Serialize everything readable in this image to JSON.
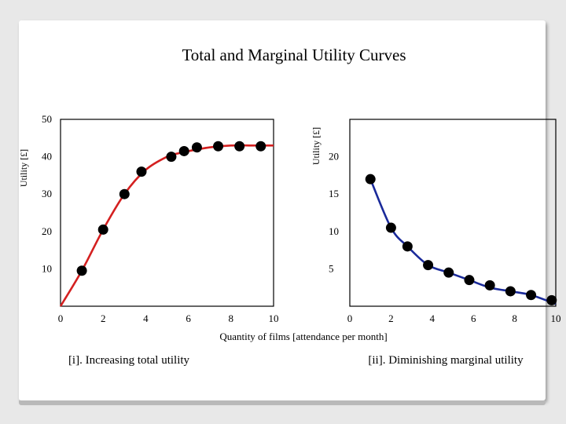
{
  "title": "Total and Marginal Utility Curves",
  "shared_xlabel": "Quantity of films [attendance per month]",
  "colors": {
    "total_curve": "#d42020",
    "marginal_curve": "#1a2a9a",
    "points": "#000000",
    "frame": "#000000"
  },
  "chart_data": [
    {
      "type": "line",
      "caption": "[i]. Increasing total utility",
      "ylabel": "Utility [£]",
      "xlabel": "",
      "xlim": [
        0,
        10
      ],
      "ylim": [
        0,
        50
      ],
      "xticks": [
        0,
        2,
        4,
        6,
        8,
        10
      ],
      "yticks": [
        10,
        20,
        30,
        40,
        50
      ],
      "curve": {
        "x": [
          0,
          1,
          2,
          3,
          4,
          5,
          5.6,
          6,
          7,
          8,
          9,
          10
        ],
        "y": [
          0,
          9.5,
          20.5,
          30,
          36.5,
          40,
          41,
          41.5,
          42.5,
          43,
          43,
          43
        ]
      },
      "points": {
        "x": [
          1,
          2,
          3,
          3.8,
          5.2,
          5.8,
          6.4,
          7.4,
          8.4,
          9.4
        ],
        "y": [
          9.5,
          20.5,
          30,
          36,
          40,
          41.5,
          42.5,
          42.8,
          42.8,
          42.8
        ]
      }
    },
    {
      "type": "line",
      "caption": "[ii]. Diminishing marginal utility",
      "ylabel": "Utility [£]",
      "xlabel": "",
      "xlim": [
        0,
        10
      ],
      "ylim": [
        0,
        25
      ],
      "xticks": [
        0,
        2,
        4,
        6,
        8,
        10
      ],
      "yticks": [
        5,
        10,
        15,
        20
      ],
      "curve": {
        "x": [
          1,
          2,
          2.8,
          3.8,
          4.8,
          5.8,
          6.8,
          7.8,
          8.8,
          10
        ],
        "y": [
          17,
          10.5,
          8,
          5.5,
          4.5,
          3.5,
          2.5,
          2,
          1.5,
          0.3
        ]
      },
      "points": {
        "x": [
          1,
          2,
          2.8,
          3.8,
          4.8,
          5.8,
          6.8,
          7.8,
          8.8,
          9.8
        ],
        "y": [
          17,
          10.5,
          8,
          5.5,
          4.5,
          3.5,
          2.8,
          2,
          1.5,
          0.8
        ]
      }
    }
  ]
}
